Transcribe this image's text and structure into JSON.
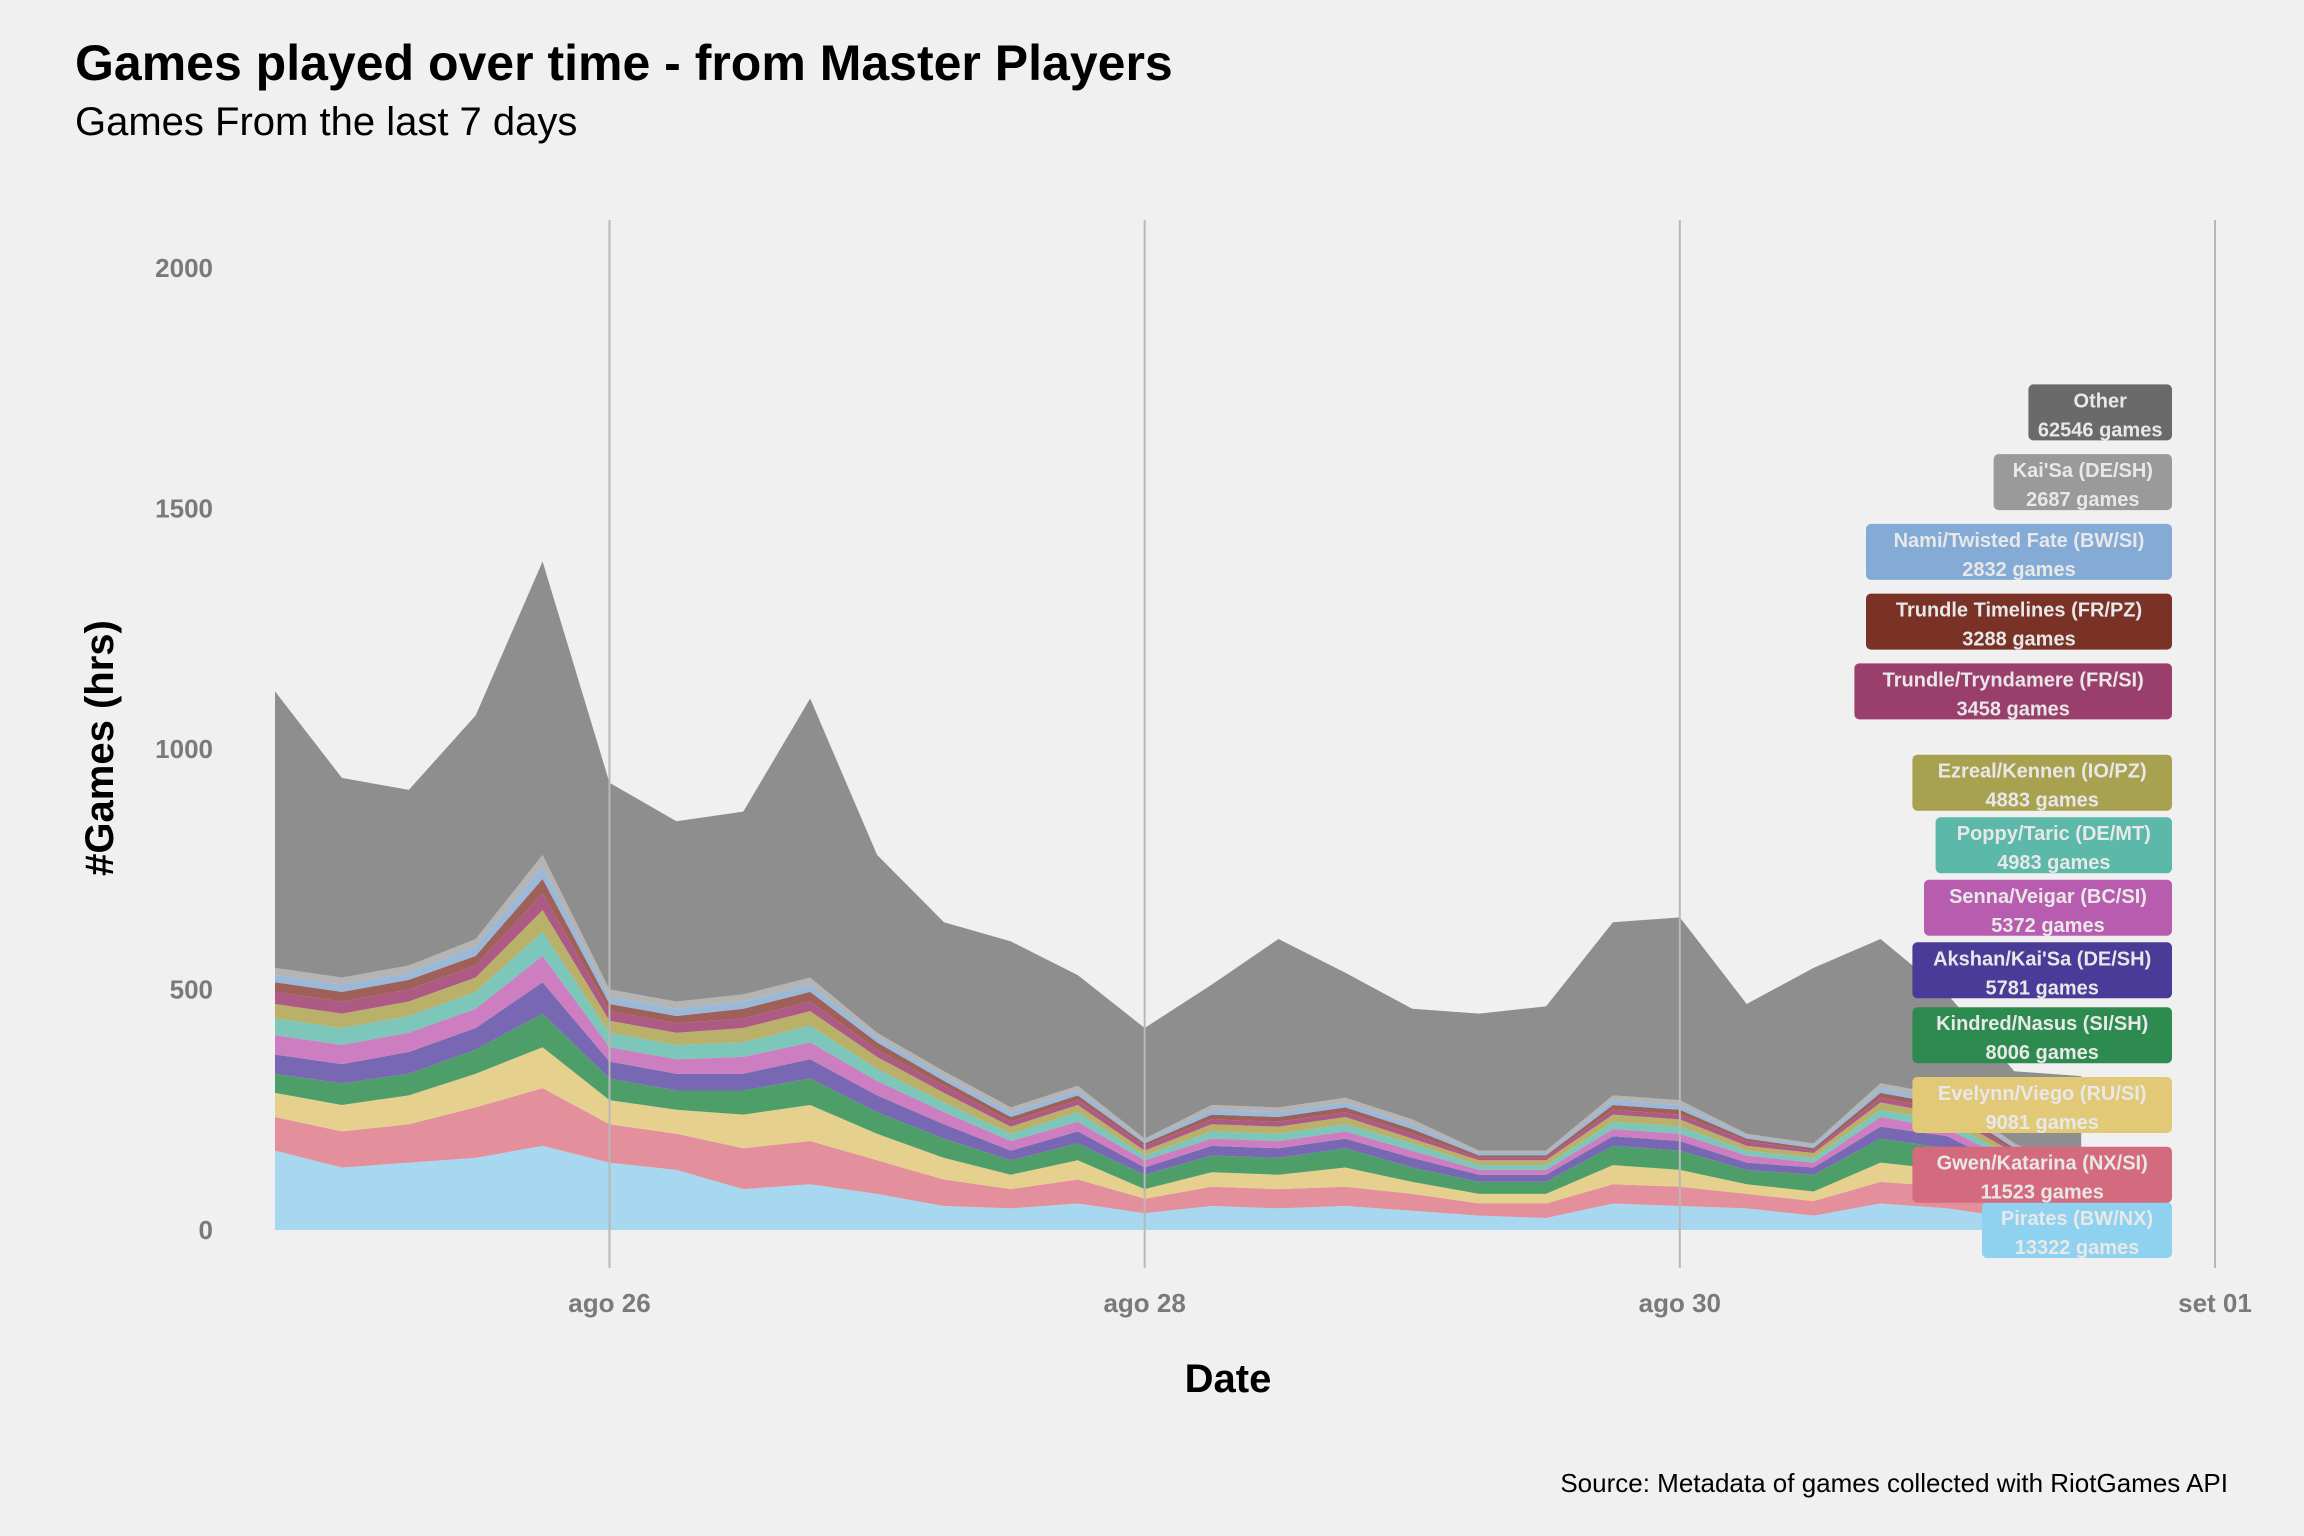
{
  "chart_data": {
    "type": "area",
    "title": "Games played over time - from Master Players",
    "subtitle": "Games From the last 7 days",
    "caption": "Source: Metadata of games collected with RiotGames API",
    "xlabel": "Date",
    "ylabel": "#Games (hrs)",
    "ylim": [
      0,
      2100
    ],
    "yticks": [
      0,
      500,
      1000,
      1500,
      2000
    ],
    "xlim": [
      "2021-08-24T18:00",
      "2021-09-01T00:00"
    ],
    "xticks": [
      {
        "date": "2021-08-26",
        "label": "ago 26"
      },
      {
        "date": "2021-08-28",
        "label": "ago 28"
      },
      {
        "date": "2021-08-30",
        "label": "ago 30"
      },
      {
        "date": "2021-09-01",
        "label": "set 01"
      }
    ],
    "grid": {
      "vertical": true,
      "horizontal": false
    },
    "stacked": true,
    "x": [
      "2021-08-24T18:00",
      "2021-08-25T00:00",
      "2021-08-25T06:00",
      "2021-08-25T12:00",
      "2021-08-25T18:00",
      "2021-08-26T00:00",
      "2021-08-26T06:00",
      "2021-08-26T12:00",
      "2021-08-26T18:00",
      "2021-08-27T00:00",
      "2021-08-27T06:00",
      "2021-08-27T12:00",
      "2021-08-27T18:00",
      "2021-08-28T00:00",
      "2021-08-28T06:00",
      "2021-08-28T12:00",
      "2021-08-28T18:00",
      "2021-08-29T00:00",
      "2021-08-29T06:00",
      "2021-08-29T12:00",
      "2021-08-29T18:00",
      "2021-08-30T00:00",
      "2021-08-30T06:00",
      "2021-08-30T12:00",
      "2021-08-30T18:00",
      "2021-08-31T00:00",
      "2021-08-31T06:00",
      "2021-08-31T12:00"
    ],
    "series": [
      {
        "name": "Pirates (BW/NX)",
        "games": "13322 games",
        "color": "#a8d8f0",
        "label_y": 0,
        "values": [
          165,
          130,
          140,
          150,
          175,
          140,
          125,
          85,
          95,
          75,
          50,
          45,
          55,
          35,
          50,
          45,
          50,
          40,
          30,
          25,
          55,
          50,
          45,
          30,
          55,
          45,
          25,
          5
        ]
      },
      {
        "name": "Gwen/Katarina (NX/SI)",
        "games": "11523 games",
        "color": "#e38f9c",
        "label_y": 115,
        "values": [
          70,
          75,
          80,
          105,
          120,
          80,
          75,
          85,
          90,
          70,
          55,
          40,
          50,
          30,
          40,
          40,
          40,
          35,
          25,
          30,
          40,
          40,
          30,
          30,
          45,
          45,
          30,
          15
        ]
      },
      {
        "name": "Evelynn/Viego (RU/SI)",
        "games": "9081 games",
        "color": "#e6d08e",
        "label_y": 260,
        "values": [
          50,
          55,
          60,
          70,
          85,
          50,
          50,
          70,
          75,
          55,
          45,
          30,
          40,
          20,
          30,
          30,
          40,
          25,
          20,
          20,
          40,
          35,
          20,
          20,
          40,
          35,
          25,
          20
        ]
      },
      {
        "name": "Kindred/Nasus (SI/SH)",
        "games": "8006 games",
        "color": "#4e9e6a",
        "label_y": 405,
        "values": [
          40,
          45,
          45,
          50,
          70,
          45,
          40,
          50,
          55,
          45,
          40,
          30,
          35,
          30,
          35,
          35,
          40,
          30,
          25,
          25,
          40,
          40,
          30,
          35,
          50,
          45,
          30,
          20
        ]
      },
      {
        "name": "Akshan/Kai'Sa (DE/SH)",
        "games": "5781 games",
        "color": "#7868b4",
        "label_y": 540,
        "values": [
          40,
          40,
          45,
          45,
          65,
          35,
          35,
          35,
          40,
          35,
          30,
          20,
          25,
          15,
          20,
          20,
          20,
          20,
          15,
          15,
          20,
          20,
          15,
          15,
          25,
          25,
          15,
          10
        ]
      },
      {
        "name": "Senna/Veigar (BC/SI)",
        "games": "5372 games",
        "color": "#cc7ec0",
        "label_y": 670,
        "values": [
          40,
          40,
          40,
          40,
          55,
          30,
          30,
          35,
          35,
          30,
          25,
          20,
          20,
          15,
          15,
          15,
          15,
          15,
          10,
          10,
          15,
          15,
          15,
          10,
          20,
          15,
          15,
          10
        ]
      },
      {
        "name": "Poppy/Taric (DE/MT)",
        "games": "4983 games",
        "color": "#7cc6ba",
        "label_y": 800,
        "values": [
          35,
          35,
          35,
          35,
          50,
          30,
          30,
          30,
          35,
          25,
          20,
          15,
          20,
          10,
          15,
          15,
          15,
          15,
          10,
          10,
          15,
          15,
          10,
          10,
          15,
          15,
          10,
          10
        ]
      },
      {
        "name": "Ezreal/Kennen (IO/PZ)",
        "games": "4883 games",
        "color": "#b9b06a",
        "label_y": 930,
        "values": [
          30,
          30,
          30,
          30,
          45,
          25,
          25,
          30,
          30,
          25,
          20,
          15,
          15,
          10,
          15,
          15,
          15,
          10,
          10,
          10,
          15,
          15,
          10,
          10,
          15,
          15,
          10,
          10
        ]
      },
      {
        "name": "Trundle/Tryndamere (FR/SI)",
        "games": "3458 games",
        "color": "#ad5a84",
        "label_y": 1120,
        "values": [
          25,
          25,
          25,
          25,
          35,
          20,
          20,
          20,
          20,
          15,
          15,
          10,
          10,
          10,
          10,
          10,
          10,
          10,
          5,
          5,
          10,
          10,
          10,
          5,
          10,
          10,
          5,
          5
        ]
      },
      {
        "name": "Trundle Timelines (FR/PZ)",
        "games": "3288 games",
        "color": "#a0605a",
        "label_y": 1265,
        "values": [
          20,
          20,
          20,
          20,
          30,
          15,
          15,
          20,
          20,
          15,
          10,
          10,
          10,
          5,
          10,
          10,
          10,
          10,
          5,
          5,
          10,
          10,
          5,
          5,
          10,
          10,
          5,
          5
        ]
      },
      {
        "name": "Nami/Twisted Fate (BW/SI)",
        "games": "2832 games",
        "color": "#9ab8d8",
        "label_y": 1410,
        "values": [
          15,
          15,
          15,
          20,
          25,
          15,
          15,
          15,
          15,
          10,
          10,
          10,
          10,
          5,
          10,
          10,
          10,
          10,
          5,
          5,
          10,
          10,
          5,
          5,
          10,
          10,
          5,
          5
        ]
      },
      {
        "name": "Kai'Sa (DE/SH)",
        "games": "2687 games",
        "color": "#b4b4b4",
        "label_y": 1555,
        "values": [
          15,
          15,
          15,
          15,
          25,
          15,
          15,
          15,
          15,
          10,
          10,
          10,
          10,
          5,
          10,
          10,
          10,
          10,
          5,
          5,
          10,
          10,
          5,
          5,
          10,
          10,
          5,
          5
        ]
      },
      {
        "name": "Other",
        "games": "62546 games",
        "color": "#8e8e8e",
        "label_y": 1700,
        "values": [
          575,
          415,
          365,
          465,
          610,
          430,
          375,
          380,
          580,
          370,
          310,
          345,
          230,
          230,
          250,
          350,
          260,
          230,
          285,
          300,
          360,
          380,
          270,
          365,
          300,
          210,
          150,
          200
        ]
      }
    ],
    "label_colors": {
      "Pirates (BW/NX)": "#8fd2f0",
      "Gwen/Katarina (NX/SI)": "#d46a7e",
      "Evelynn/Viego (RU/SI)": "#e2c978",
      "Kindred/Nasus (SI/SH)": "#2e8b50",
      "Akshan/Kai'Sa (DE/SH)": "#4a3b98",
      "Senna/Veigar (BC/SI)": "#b85cb0",
      "Poppy/Taric (DE/MT)": "#5cb8a8",
      "Ezreal/Kennen (IO/PZ)": "#a8a250",
      "Trundle/Tryndamere (FR/SI)": "#9a3e6c",
      "Trundle Timelines (FR/PZ)": "#7a3226",
      "Nami/Twisted Fate (BW/SI)": "#84aad6",
      "Kai'Sa (DE/SH)": "#9a9a9a",
      "Other": "#6a6a6a"
    },
    "label_text_color": "#e8e8e8",
    "gridline_color": "#b8b8b8",
    "tick_label_color": "#7a7a7a"
  }
}
